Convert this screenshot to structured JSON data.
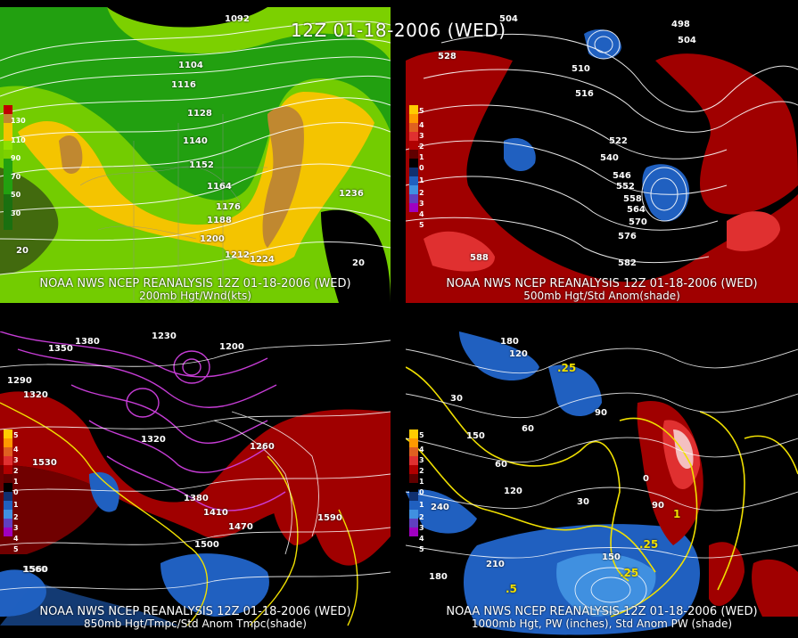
{
  "main_title": "12Z 01-18-2006 (WED)",
  "panels": [
    {
      "caption1": "NOAA NWS NCEP REANALYSIS 12Z 01-18-2006 (WED)",
      "caption2": "200mb Hgt/Wnd(kts)",
      "legend": [
        "130",
        "110",
        "90",
        "70",
        "50",
        "30"
      ],
      "contours": [
        "1092",
        "1104",
        "1116",
        "1128",
        "1140",
        "1152",
        "1164",
        "1176",
        "1188",
        "1200",
        "1212",
        "1224",
        "1236"
      ],
      "extra": [
        "20",
        "20"
      ]
    },
    {
      "caption1": "NOAA NWS NCEP REANALYSIS 12Z 01-18-2006 (WED)",
      "caption2": "500mb Hgt/Std Anom(shade)",
      "legend": [
        "5",
        "4",
        "3",
        "2",
        "1",
        "0",
        "1",
        "2",
        "3",
        "4",
        "5"
      ],
      "contours": [
        "504",
        "498",
        "504",
        "510",
        "516",
        "522",
        "528",
        "540",
        "546",
        "552",
        "558",
        "564",
        "570",
        "576",
        "582",
        "588"
      ]
    },
    {
      "caption1": "NOAA NWS NCEP REANALYSIS 12Z 01-18-2006 (WED)",
      "caption2": "850mb Hgt/Tmpc/Std Anom Tmpc(shade)",
      "legend": [
        "5",
        "4",
        "3",
        "2",
        "1",
        "0",
        "1",
        "2",
        "3",
        "4",
        "5"
      ],
      "contours": [
        "1380",
        "1350",
        "1290",
        "1320",
        "1230",
        "1200",
        "1260",
        "1530",
        "1380",
        "1410",
        "1470",
        "1500",
        "1560",
        "1590",
        "1560",
        "1320"
      ]
    },
    {
      "caption1": "NOAA NWS NCEP REANALYSIS 12Z 01-18-2006 (WED)",
      "caption2": "1000mb Hgt, PW (inches), Std Anom PW (shade)",
      "legend": [
        "5",
        "4",
        "3",
        "2",
        "1",
        "0",
        "1",
        "2",
        "3",
        "4",
        "5"
      ],
      "contours": [
        "180",
        "150",
        "120",
        "90",
        "60",
        "30",
        "240",
        "210",
        "180",
        "150",
        "120",
        "90",
        "60",
        "30",
        "0"
      ],
      "pw": [
        ".25",
        ".25",
        ".25",
        ".5",
        "1"
      ]
    }
  ],
  "colors": {
    "wind_low": "#1fa80f",
    "wind_mid": "#8fe000",
    "wind_high": "#f4c400",
    "wind_max": "#c08830",
    "anom_pos": "#a00000",
    "anom_pos2": "#e03030",
    "anom_neg": "#2060c0",
    "anom_neg2": "#4090e0",
    "pw": "#f0e000",
    "temp": "#d040e0"
  }
}
